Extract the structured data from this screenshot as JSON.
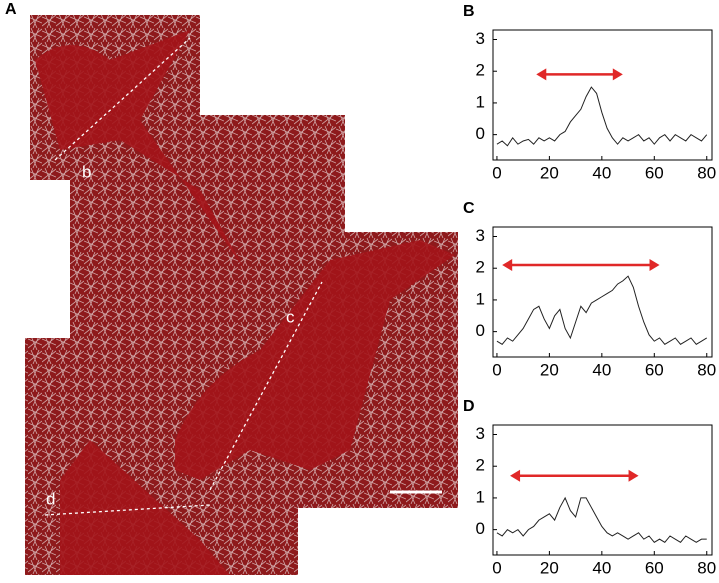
{
  "image_panel": {
    "panel_label": "A",
    "markers": [
      "b",
      "c",
      "d"
    ]
  },
  "chart_data": [
    {
      "type": "line",
      "panel_label": "B",
      "x": [
        0,
        2,
        4,
        6,
        8,
        10,
        12,
        14,
        16,
        18,
        20,
        22,
        24,
        26,
        28,
        30,
        32,
        34,
        36,
        38,
        40,
        42,
        44,
        46,
        48,
        50,
        52,
        54,
        56,
        58,
        60,
        62,
        64,
        66,
        68,
        70,
        72,
        74,
        76,
        78,
        80
      ],
      "values": [
        -0.3,
        -0.2,
        -0.35,
        -0.1,
        -0.3,
        -0.2,
        -0.15,
        -0.3,
        -0.1,
        -0.2,
        -0.1,
        -0.2,
        0.0,
        0.1,
        0.4,
        0.6,
        0.8,
        1.2,
        1.5,
        1.3,
        0.7,
        0.2,
        -0.1,
        -0.3,
        -0.1,
        -0.2,
        -0.1,
        0.0,
        -0.2,
        -0.1,
        -0.3,
        -0.1,
        0.0,
        -0.2,
        0.0,
        -0.1,
        -0.2,
        0.0,
        -0.1,
        -0.2,
        0.0
      ],
      "color": "#222222",
      "xlim": [
        -1.5,
        82
      ],
      "ylim": [
        -0.8,
        3.3
      ],
      "xticks": [
        0,
        20,
        40,
        60,
        80
      ],
      "yticks": [
        0,
        1,
        2,
        3
      ],
      "arrow": {
        "x": [
          15,
          48
        ],
        "y": 1.9,
        "color": "#e02828"
      }
    },
    {
      "type": "line",
      "panel_label": "C",
      "x": [
        0,
        2,
        4,
        6,
        8,
        10,
        12,
        14,
        16,
        18,
        20,
        22,
        24,
        26,
        28,
        30,
        32,
        34,
        36,
        38,
        40,
        42,
        44,
        46,
        48,
        50,
        52,
        54,
        56,
        58,
        60,
        62,
        64,
        66,
        68,
        70,
        72,
        74,
        76,
        78,
        80
      ],
      "values": [
        -0.3,
        -0.4,
        -0.2,
        -0.3,
        -0.1,
        0.1,
        0.4,
        0.7,
        0.8,
        0.4,
        0.1,
        0.5,
        0.7,
        0.1,
        -0.2,
        0.3,
        0.8,
        0.6,
        0.9,
        1.0,
        1.1,
        1.2,
        1.3,
        1.5,
        1.6,
        1.75,
        1.4,
        0.8,
        0.3,
        -0.1,
        -0.3,
        -0.2,
        -0.4,
        -0.3,
        -0.2,
        -0.4,
        -0.3,
        -0.2,
        -0.4,
        -0.3,
        -0.2
      ],
      "color": "#222222",
      "xlim": [
        -1.5,
        82
      ],
      "ylim": [
        -0.8,
        3.3
      ],
      "xticks": [
        0,
        20,
        40,
        60,
        80
      ],
      "yticks": [
        0,
        1,
        2,
        3
      ],
      "arrow": {
        "x": [
          2,
          62
        ],
        "y": 2.1,
        "color": "#e02828"
      }
    },
    {
      "type": "line",
      "panel_label": "D",
      "x": [
        0,
        2,
        4,
        6,
        8,
        10,
        12,
        14,
        16,
        18,
        20,
        22,
        24,
        26,
        28,
        30,
        32,
        34,
        36,
        38,
        40,
        42,
        44,
        46,
        48,
        50,
        52,
        54,
        56,
        58,
        60,
        62,
        64,
        66,
        68,
        70,
        72,
        74,
        76,
        78,
        80
      ],
      "values": [
        -0.1,
        -0.2,
        0.0,
        -0.1,
        0.0,
        -0.2,
        0.0,
        0.1,
        0.3,
        0.4,
        0.5,
        0.3,
        0.7,
        1.0,
        0.6,
        0.4,
        1.0,
        1.0,
        0.7,
        0.4,
        0.1,
        -0.1,
        -0.2,
        -0.1,
        -0.2,
        -0.3,
        -0.2,
        -0.1,
        -0.3,
        -0.2,
        -0.4,
        -0.3,
        -0.4,
        -0.2,
        -0.3,
        -0.4,
        -0.2,
        -0.3,
        -0.4,
        -0.3,
        -0.3
      ],
      "color": "#222222",
      "xlim": [
        -1.5,
        82
      ],
      "ylim": [
        -0.8,
        3.3
      ],
      "xticks": [
        0,
        20,
        40,
        60,
        80
      ],
      "yticks": [
        0,
        1,
        2,
        3
      ],
      "arrow": {
        "x": [
          5,
          54
        ],
        "y": 1.7,
        "color": "#e02828"
      }
    }
  ]
}
